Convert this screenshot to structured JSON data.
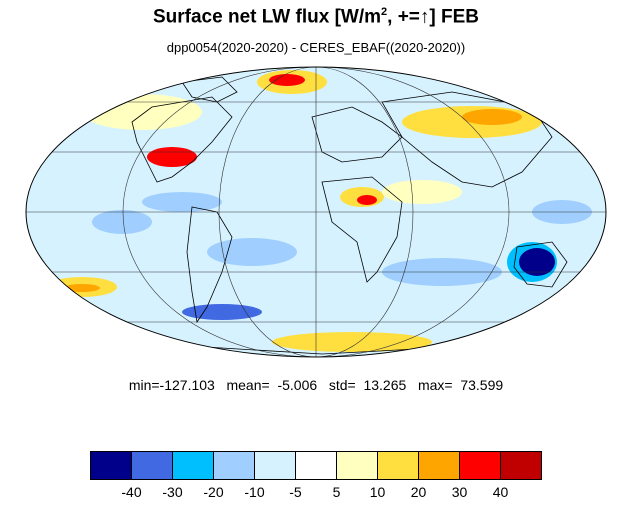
{
  "title": {
    "main": "Surface net LW flux [W/m",
    "superscript": "2",
    "suffix": ", +=↑]  FEB"
  },
  "subtitle": "dpp0054(2020-2020) - CERES_EBAF((2020-2020))",
  "stats": {
    "text": "min=-127.103   mean=  -5.006   std=  13.265   max=  73.599"
  },
  "colorbar": {
    "colors": [
      "#00008b",
      "#4169e1",
      "#00bfff",
      "#a0cfff",
      "#d6f2ff",
      "#ffffff",
      "#ffffc0",
      "#ffdf40",
      "#ffa500",
      "#ff0000",
      "#c00000"
    ],
    "labels": [
      "-40",
      "-30",
      "-20",
      "-10",
      "-5",
      "5",
      "10",
      "20",
      "30",
      "40"
    ]
  },
  "map": {
    "projection": "mollweide",
    "ocean_tint": "#d6f2ff"
  }
}
